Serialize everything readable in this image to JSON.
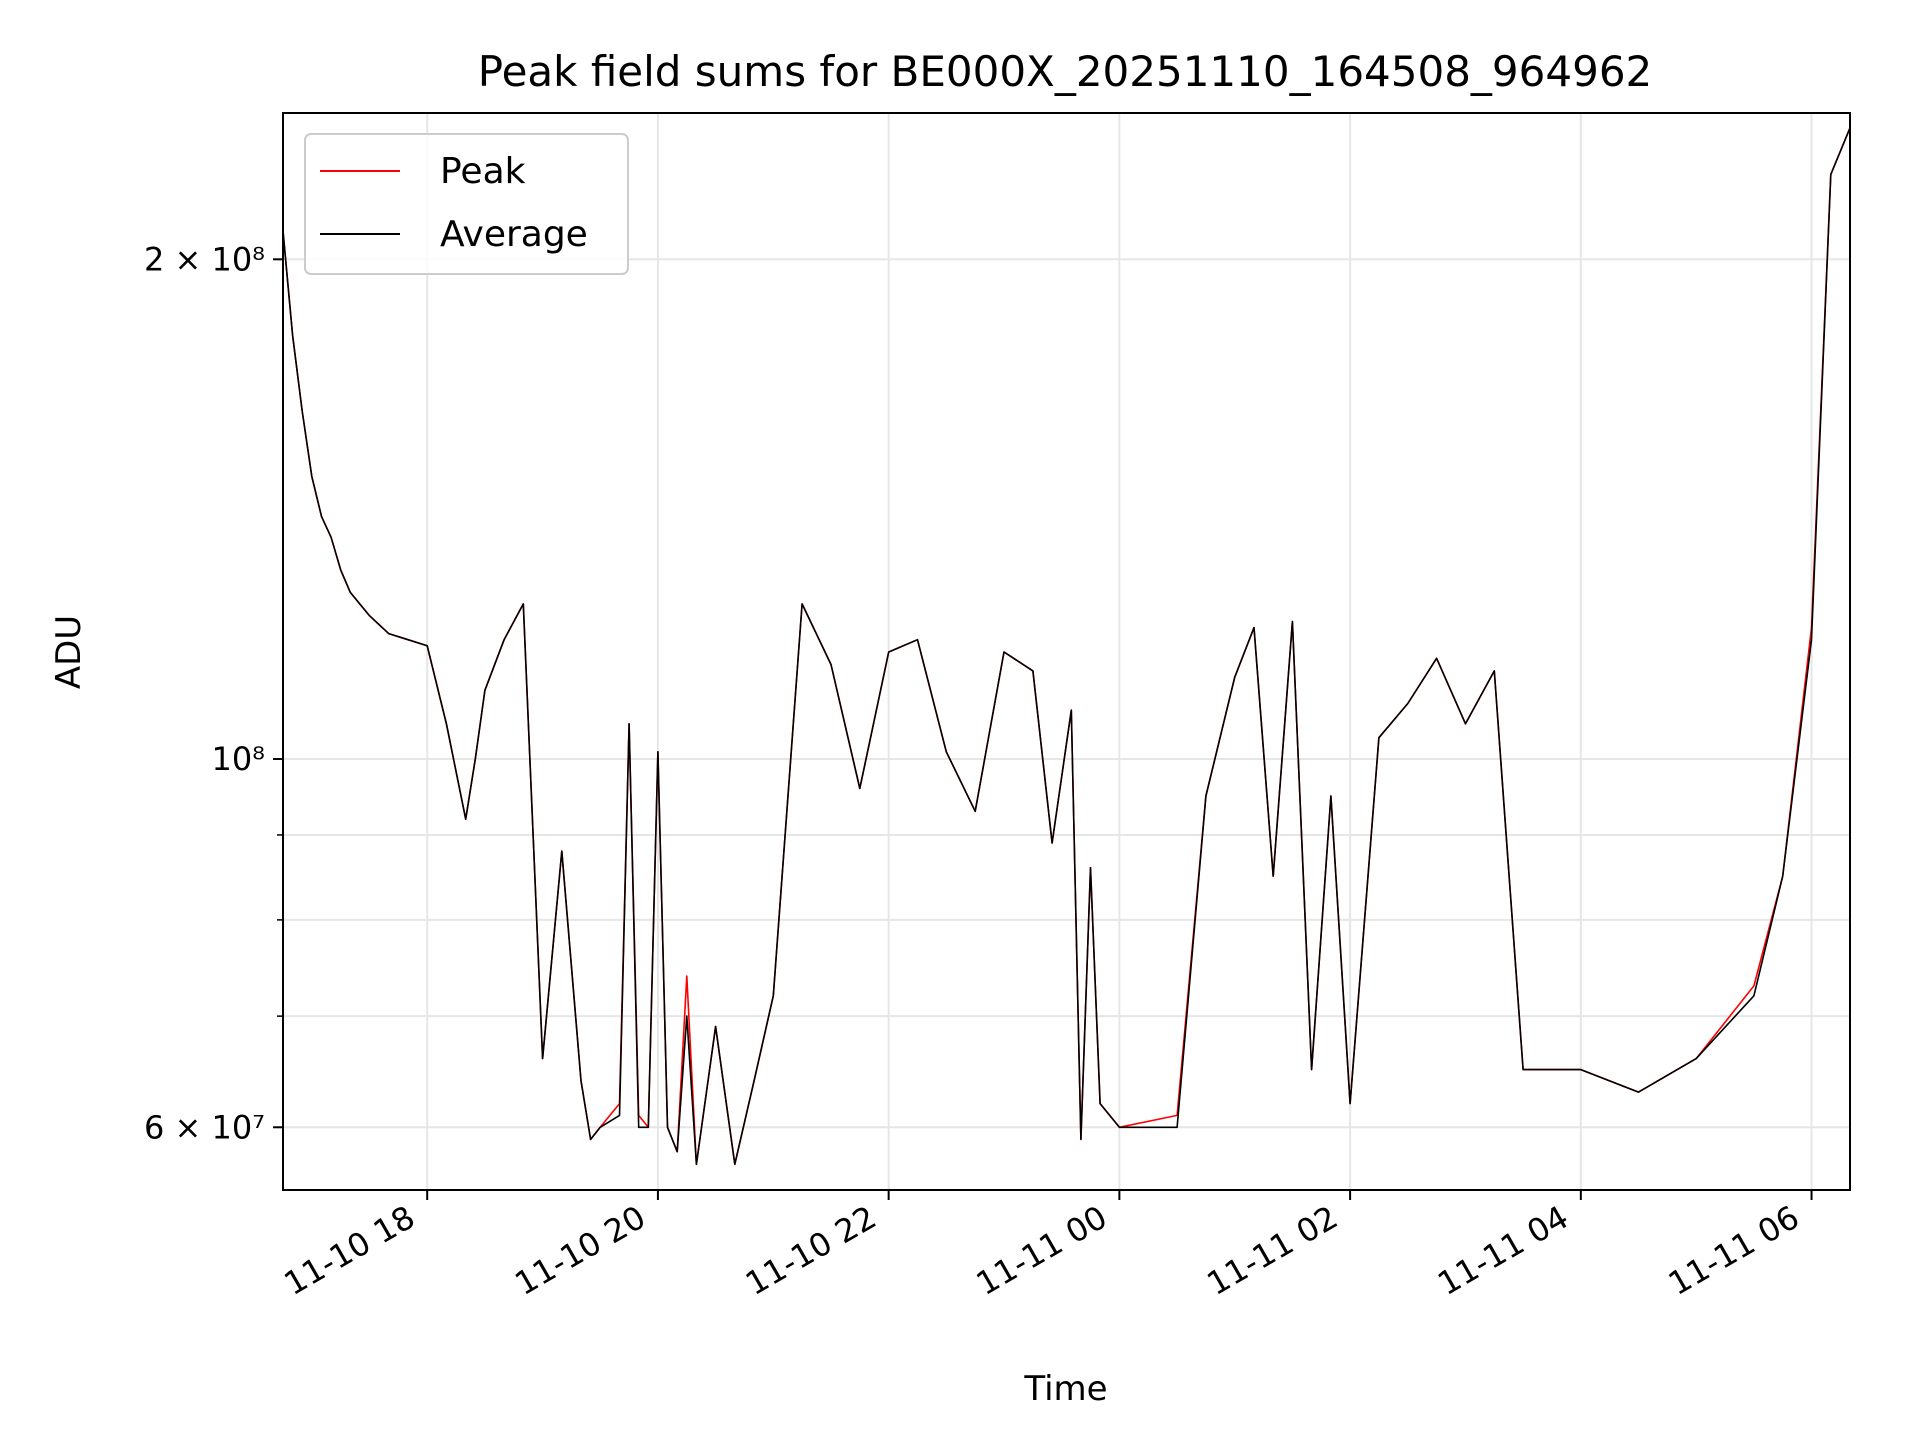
{
  "chart_data": {
    "type": "line",
    "title": "Peak field sums for BE000X_20251110_164508_964962",
    "xlabel": "Time",
    "ylabel": "ADU",
    "yscale": "log",
    "grid": true,
    "legend_position": "top-left",
    "x_start": "2025-11-10 16:45",
    "x_end": "2025-11-11 06:20",
    "ylim": [
      55000000,
      245000000
    ],
    "x_ticks": [
      "11-10 18",
      "11-10 20",
      "11-10 22",
      "11-11 00",
      "11-11 02",
      "11-11 04",
      "11-11 06"
    ],
    "y_ticks": [
      {
        "value": 200000000,
        "label": "2 × 10⁸"
      },
      {
        "value": 100000000,
        "label": "10⁸"
      },
      {
        "value": 60000000,
        "label": "6 × 10⁷"
      }
    ],
    "series": [
      {
        "name": "Peak",
        "color": "#ff0000",
        "x": [
          "2025-11-10 16:45",
          "2025-11-10 16:50",
          "2025-11-10 16:55",
          "2025-11-10 17:00",
          "2025-11-10 17:05",
          "2025-11-10 17:10",
          "2025-11-10 17:15",
          "2025-11-10 17:20",
          "2025-11-10 17:30",
          "2025-11-10 17:40",
          "2025-11-10 17:50",
          "2025-11-10 18:00",
          "2025-11-10 18:10",
          "2025-11-10 18:20",
          "2025-11-10 18:25",
          "2025-11-10 18:30",
          "2025-11-10 18:40",
          "2025-11-10 18:50",
          "2025-11-10 19:00",
          "2025-11-10 19:10",
          "2025-11-10 19:20",
          "2025-11-10 19:25",
          "2025-11-10 19:30",
          "2025-11-10 19:40",
          "2025-11-10 19:45",
          "2025-11-10 19:50",
          "2025-11-10 19:55",
          "2025-11-10 20:00",
          "2025-11-10 20:05",
          "2025-11-10 20:10",
          "2025-11-10 20:15",
          "2025-11-10 20:20",
          "2025-11-10 20:30",
          "2025-11-10 20:40",
          "2025-11-10 20:50",
          "2025-11-10 21:00",
          "2025-11-10 21:15",
          "2025-11-10 21:30",
          "2025-11-10 21:45",
          "2025-11-10 22:00",
          "2025-11-10 22:15",
          "2025-11-10 22:30",
          "2025-11-10 22:45",
          "2025-11-10 23:00",
          "2025-11-10 23:15",
          "2025-11-10 23:25",
          "2025-11-10 23:35",
          "2025-11-10 23:40",
          "2025-11-10 23:45",
          "2025-11-10 23:50",
          "2025-11-11 00:00",
          "2025-11-11 00:30",
          "2025-11-11 00:45",
          "2025-11-11 01:00",
          "2025-11-11 01:10",
          "2025-11-11 01:20",
          "2025-11-11 01:30",
          "2025-11-11 01:40",
          "2025-11-11 01:50",
          "2025-11-11 02:00",
          "2025-11-11 02:15",
          "2025-11-11 02:30",
          "2025-11-11 02:45",
          "2025-11-11 03:00",
          "2025-11-11 03:15",
          "2025-11-11 03:30",
          "2025-11-11 04:00",
          "2025-11-11 04:30",
          "2025-11-11 05:00",
          "2025-11-11 05:30",
          "2025-11-11 05:45",
          "2025-11-11 06:00",
          "2025-11-11 06:10",
          "2025-11-11 06:20"
        ],
        "y": [
          208000000,
          180000000,
          162000000,
          148000000,
          140000000,
          136000000,
          130000000,
          126000000,
          122000000,
          119000000,
          118000000,
          117000000,
          105000000,
          92000000,
          100000000,
          110000000,
          118000000,
          124000000,
          66000000,
          88000000,
          64000000,
          59000000,
          60000000,
          62000000,
          105000000,
          61000000,
          60000000,
          101000000,
          60000000,
          58000000,
          74000000,
          57000000,
          69000000,
          57000000,
          64000000,
          72000000,
          124000000,
          114000000,
          96000000,
          116000000,
          118000000,
          101000000,
          93000000,
          116000000,
          113000000,
          89000000,
          107000000,
          59000000,
          86000000,
          62000000,
          60000000,
          61000000,
          95000000,
          112000000,
          120000000,
          85000000,
          121000000,
          65000000,
          95000000,
          62000000,
          103000000,
          108000000,
          115000000,
          105000000,
          113000000,
          65000000,
          65000000,
          63000000,
          66000000,
          73000000,
          85000000,
          120000000,
          225000000,
          240000000
        ]
      },
      {
        "name": "Average",
        "color": "#000000",
        "x": [
          "2025-11-10 16:45",
          "2025-11-10 16:50",
          "2025-11-10 16:55",
          "2025-11-10 17:00",
          "2025-11-10 17:05",
          "2025-11-10 17:10",
          "2025-11-10 17:15",
          "2025-11-10 17:20",
          "2025-11-10 17:30",
          "2025-11-10 17:40",
          "2025-11-10 17:50",
          "2025-11-10 18:00",
          "2025-11-10 18:10",
          "2025-11-10 18:20",
          "2025-11-10 18:25",
          "2025-11-10 18:30",
          "2025-11-10 18:40",
          "2025-11-10 18:50",
          "2025-11-10 19:00",
          "2025-11-10 19:10",
          "2025-11-10 19:20",
          "2025-11-10 19:25",
          "2025-11-10 19:30",
          "2025-11-10 19:40",
          "2025-11-10 19:45",
          "2025-11-10 19:50",
          "2025-11-10 19:55",
          "2025-11-10 20:00",
          "2025-11-10 20:05",
          "2025-11-10 20:10",
          "2025-11-10 20:15",
          "2025-11-10 20:20",
          "2025-11-10 20:30",
          "2025-11-10 20:40",
          "2025-11-10 20:50",
          "2025-11-10 21:00",
          "2025-11-10 21:15",
          "2025-11-10 21:30",
          "2025-11-10 21:45",
          "2025-11-10 22:00",
          "2025-11-10 22:15",
          "2025-11-10 22:30",
          "2025-11-10 22:45",
          "2025-11-10 23:00",
          "2025-11-10 23:15",
          "2025-11-10 23:25",
          "2025-11-10 23:35",
          "2025-11-10 23:40",
          "2025-11-10 23:45",
          "2025-11-10 23:50",
          "2025-11-11 00:00",
          "2025-11-11 00:30",
          "2025-11-11 00:45",
          "2025-11-11 01:00",
          "2025-11-11 01:10",
          "2025-11-11 01:20",
          "2025-11-11 01:30",
          "2025-11-11 01:40",
          "2025-11-11 01:50",
          "2025-11-11 02:00",
          "2025-11-11 02:15",
          "2025-11-11 02:30",
          "2025-11-11 02:45",
          "2025-11-11 03:00",
          "2025-11-11 03:15",
          "2025-11-11 03:30",
          "2025-11-11 04:00",
          "2025-11-11 04:30",
          "2025-11-11 05:00",
          "2025-11-11 05:30",
          "2025-11-11 05:45",
          "2025-11-11 06:00",
          "2025-11-11 06:10",
          "2025-11-11 06:20"
        ],
        "y": [
          208000000,
          180000000,
          162000000,
          148000000,
          140000000,
          136000000,
          130000000,
          126000000,
          122000000,
          119000000,
          118000000,
          117000000,
          105000000,
          92000000,
          100000000,
          110000000,
          118000000,
          124000000,
          66000000,
          88000000,
          64000000,
          59000000,
          60000000,
          61000000,
          105000000,
          60000000,
          60000000,
          101000000,
          60000000,
          58000000,
          70000000,
          57000000,
          69000000,
          57000000,
          64000000,
          72000000,
          124000000,
          114000000,
          96000000,
          116000000,
          118000000,
          101000000,
          93000000,
          116000000,
          113000000,
          89000000,
          107000000,
          59000000,
          86000000,
          62000000,
          60000000,
          60000000,
          95000000,
          112000000,
          120000000,
          85000000,
          121000000,
          65000000,
          95000000,
          62000000,
          103000000,
          108000000,
          115000000,
          105000000,
          113000000,
          65000000,
          65000000,
          63000000,
          66000000,
          72000000,
          85000000,
          118000000,
          225000000,
          240000000
        ]
      }
    ]
  }
}
